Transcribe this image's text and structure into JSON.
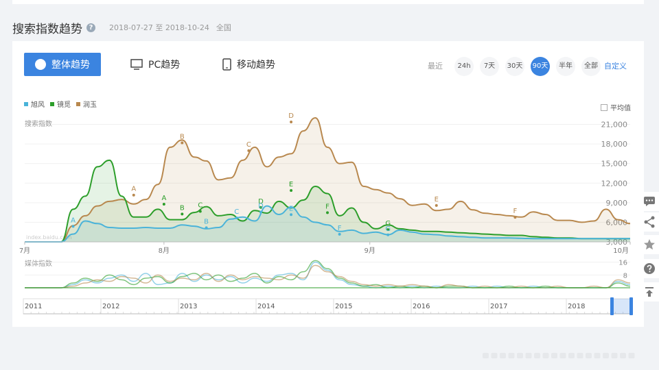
{
  "header": {
    "title": "搜索指数趋势",
    "help": "?",
    "date_range": "2018-07-27 至 2018-10-24",
    "region": "全国"
  },
  "modes": [
    {
      "label": "整体趋势",
      "icon": "pie-chart-icon"
    },
    {
      "label": "PC趋势",
      "icon": "monitor-icon"
    },
    {
      "label": "移动趋势",
      "icon": "phone-icon"
    }
  ],
  "range": {
    "label": "最近",
    "buttons": [
      "24h",
      "7天",
      "30天",
      "90天",
      "半年",
      "全部"
    ],
    "active": "90天",
    "custom": "自定义"
  },
  "avg_label": "平均值",
  "colors": {
    "accent": "#3b84e0",
    "旭风": "#4ab3d9",
    "镜觅": "#2c9e2a",
    "润玉": "#b8884e"
  },
  "chart_data": {
    "type": "area",
    "ylabel": "搜索指数",
    "yticks": [
      "21,000",
      "18,000",
      "15,000",
      "12,000",
      "9,000",
      "6,000",
      "3,000"
    ],
    "ylim": [
      3000,
      22000
    ],
    "xticks": [
      "7月",
      "8月",
      "9月",
      "10月"
    ],
    "watermark": "index.baidu.com",
    "series": [
      {
        "name": "旭风",
        "color": "#4ab3d9",
        "x": [
          0,
          6,
          8,
          10,
          12,
          14,
          16,
          18,
          20,
          22,
          24,
          26,
          28,
          30,
          32,
          34,
          36,
          38,
          40,
          42,
          44,
          46,
          48,
          50,
          52,
          54,
          56,
          58,
          60,
          62,
          64,
          66,
          68,
          70,
          72,
          74,
          76,
          78,
          80,
          82,
          84,
          86,
          88,
          90,
          92,
          94,
          96,
          98,
          100
        ],
        "y": [
          3000,
          3000,
          4200,
          6200,
          5800,
          5200,
          5100,
          5100,
          5200,
          5100,
          5100,
          5600,
          5400,
          5000,
          5200,
          6500,
          6800,
          6200,
          8500,
          7200,
          8300,
          6800,
          6000,
          5600,
          4600,
          4800,
          4300,
          4500,
          4100,
          4800,
          4500,
          4200,
          4100,
          3900,
          3800,
          3700,
          3600,
          3600,
          3600,
          3550,
          3500,
          3500,
          3500,
          3500,
          3500,
          3500,
          3500,
          3500,
          3500
        ]
      },
      {
        "name": "镜觅",
        "color": "#2c9e2a",
        "x": [
          0,
          6,
          8,
          10,
          12,
          14,
          16,
          18,
          20,
          22,
          24,
          26,
          28,
          30,
          32,
          34,
          36,
          38,
          40,
          42,
          44,
          46,
          48,
          50,
          52,
          54,
          56,
          58,
          60,
          62,
          64,
          66,
          68,
          70,
          72,
          74,
          76,
          78,
          80,
          82,
          84,
          86,
          88,
          90,
          92,
          94,
          96,
          98,
          100
        ],
        "y": [
          3000,
          3000,
          8000,
          10000,
          14500,
          15500,
          10000,
          6800,
          6800,
          8000,
          6400,
          6400,
          7500,
          8400,
          7000,
          7200,
          6200,
          7800,
          7400,
          9200,
          8200,
          9400,
          11500,
          10400,
          7000,
          8200,
          6000,
          5000,
          5600,
          5000,
          4800,
          4600,
          4600,
          4500,
          4400,
          4300,
          4200,
          4100,
          4000,
          4000,
          3800,
          3700,
          3600,
          3600,
          3500,
          3500,
          3500,
          3500,
          3500
        ]
      },
      {
        "name": "润玉",
        "color": "#b8884e",
        "x": [
          0,
          6,
          8,
          10,
          12,
          14,
          16,
          18,
          20,
          22,
          24,
          26,
          28,
          30,
          32,
          34,
          36,
          38,
          40,
          42,
          44,
          46,
          48,
          50,
          52,
          54,
          56,
          58,
          60,
          62,
          64,
          66,
          68,
          70,
          72,
          74,
          76,
          78,
          80,
          82,
          84,
          86,
          88,
          90,
          92,
          94,
          96,
          98,
          100
        ],
        "y": [
          3000,
          3000,
          5500,
          7000,
          8500,
          9200,
          9500,
          8800,
          9500,
          11800,
          17500,
          18600,
          16000,
          15400,
          12500,
          12800,
          15500,
          17500,
          14500,
          16000,
          16500,
          20000,
          22000,
          17500,
          15000,
          15200,
          11500,
          11000,
          10500,
          9600,
          8600,
          8800,
          7800,
          8000,
          9200,
          7900,
          7400,
          7200,
          7000,
          6800,
          7600,
          7200,
          6300,
          6300,
          6000,
          6200,
          8000,
          6400,
          5800
        ]
      }
    ],
    "annotations": [
      {
        "series": "旭风",
        "x": 8,
        "y": 6000,
        "label": "A"
      },
      {
        "series": "镜觅",
        "x": 23,
        "y": 9400,
        "label": "A"
      },
      {
        "series": "润玉",
        "x": 18,
        "y": 10800,
        "label": "A"
      },
      {
        "series": "润玉",
        "x": 26,
        "y": 18800,
        "label": "B"
      },
      {
        "series": "镜觅",
        "x": 26,
        "y": 7900,
        "label": "B"
      },
      {
        "series": "旭风",
        "x": 30,
        "y": 5800,
        "label": "B"
      },
      {
        "series": "润玉",
        "x": 37,
        "y": 17600,
        "label": "C"
      },
      {
        "series": "镜觅",
        "x": 29,
        "y": 8300,
        "label": "C"
      },
      {
        "series": "旭风",
        "x": 35,
        "y": 7300,
        "label": "C"
      },
      {
        "series": "润玉",
        "x": 44,
        "y": 22000,
        "label": "D"
      },
      {
        "series": "镜觅",
        "x": 39,
        "y": 8900,
        "label": "D"
      },
      {
        "series": "旭风",
        "x": 39,
        "y": 8200,
        "label": "D"
      },
      {
        "series": "镜觅",
        "x": 44,
        "y": 11500,
        "label": "E"
      },
      {
        "series": "旭风",
        "x": 44,
        "y": 7800,
        "label": "E"
      },
      {
        "series": "润玉",
        "x": 68,
        "y": 9200,
        "label": "E"
      },
      {
        "series": "镜觅",
        "x": 50,
        "y": 8100,
        "label": "F"
      },
      {
        "series": "旭风",
        "x": 52,
        "y": 4800,
        "label": "F"
      },
      {
        "series": "润玉",
        "x": 81,
        "y": 7400,
        "label": "F"
      },
      {
        "series": "镜觅",
        "x": 60,
        "y": 5500,
        "label": "G"
      },
      {
        "series": "旭风",
        "x": 60,
        "y": 4700,
        "label": "G"
      }
    ],
    "media": {
      "ylabel": "媒体指数",
      "yticks": [
        "16",
        "8"
      ],
      "ylim": [
        0,
        18
      ],
      "series": [
        {
          "name": "旭风",
          "color": "#4ab3d9",
          "y": [
            0,
            0,
            2,
            5,
            3,
            6,
            8,
            4,
            9,
            2,
            3,
            9,
            4,
            8,
            5,
            7,
            3,
            6,
            4,
            8,
            9,
            5,
            16,
            11,
            5,
            2,
            1,
            0,
            1,
            0,
            1,
            0,
            1,
            0,
            0,
            1,
            0,
            1,
            0,
            0,
            1,
            0,
            0,
            0,
            0,
            0,
            0,
            4,
            2
          ]
        },
        {
          "name": "镜觅",
          "color": "#2c9e2a",
          "y": [
            0,
            0,
            3,
            6,
            4,
            8,
            5,
            2,
            6,
            7,
            3,
            7,
            9,
            5,
            8,
            4,
            6,
            9,
            3,
            7,
            5,
            10,
            17,
            12,
            6,
            3,
            1,
            2,
            0,
            1,
            0,
            1,
            0,
            1,
            1,
            0,
            0,
            0,
            1,
            0,
            0,
            1,
            0,
            0,
            0,
            0,
            0,
            3,
            1
          ]
        },
        {
          "name": "润玉",
          "color": "#b8884e",
          "y": [
            0,
            0,
            1,
            3,
            5,
            4,
            7,
            6,
            3,
            8,
            4,
            6,
            5,
            9,
            4,
            8,
            5,
            7,
            6,
            5,
            8,
            6,
            14,
            10,
            7,
            4,
            2,
            1,
            2,
            1,
            2,
            1,
            0,
            2,
            1,
            0,
            1,
            0,
            0,
            1,
            0,
            0,
            1,
            0,
            0,
            1,
            0,
            5,
            3
          ]
        }
      ]
    },
    "overview": {
      "years": [
        "2011",
        "2012",
        "2013",
        "2014",
        "2015",
        "2016",
        "2017",
        "2018"
      ]
    }
  }
}
